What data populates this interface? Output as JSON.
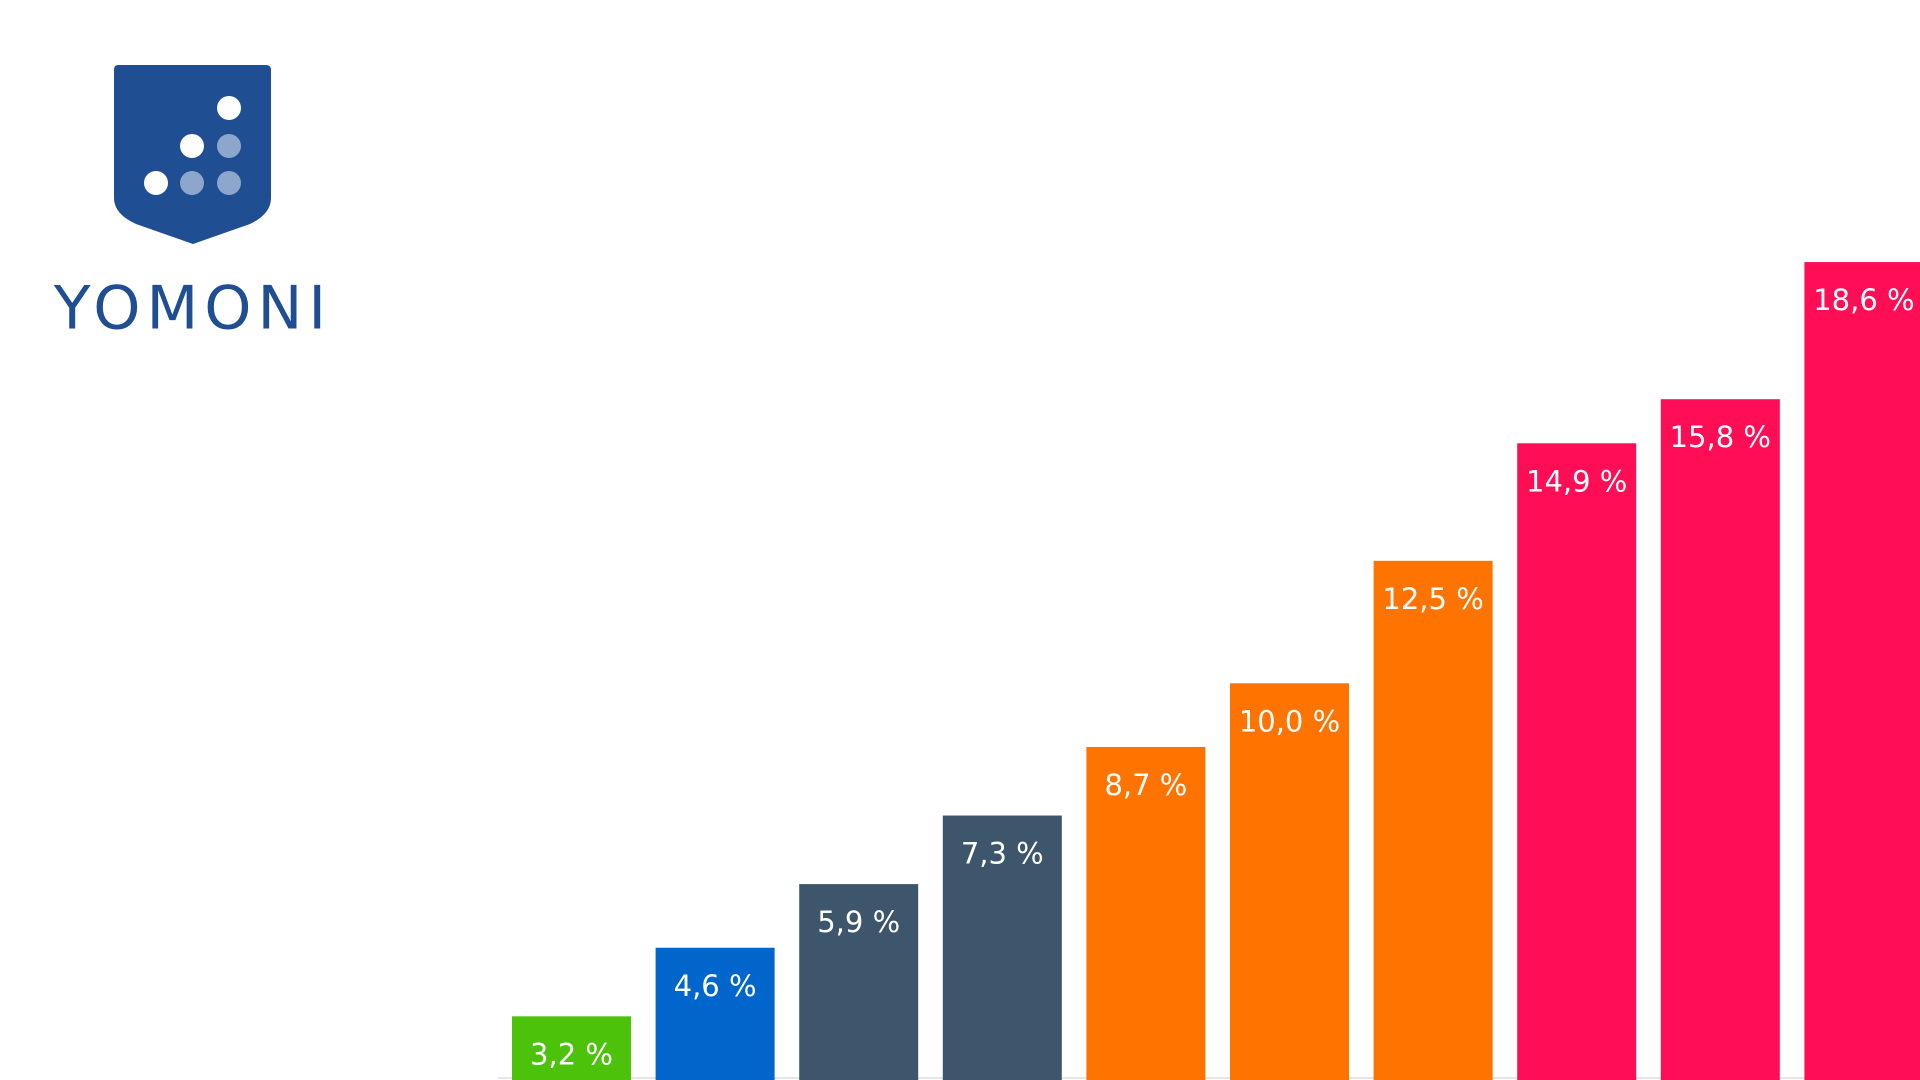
{
  "logo": {
    "text": "YOMONI"
  },
  "chart_data": {
    "type": "bar",
    "categories": [
      null,
      null,
      null,
      null,
      null,
      null,
      null,
      null,
      null,
      null
    ],
    "values": [
      3.2,
      4.6,
      5.9,
      7.3,
      8.7,
      10.0,
      12.5,
      14.9,
      15.8,
      18.6
    ],
    "value_labels": [
      "3,2 %",
      "4,6 %",
      "5,9 %",
      "7,3 %",
      "8,7 %",
      "10,0 %",
      "12,5 %",
      "14,9 %",
      "15,8 %",
      "18,6 %"
    ],
    "colors": [
      "#4cc30a",
      "#0066cc",
      "#3d566b",
      "#3d566b",
      "#ff7300",
      "#ff7300",
      "#ff7300",
      "#ff0d55",
      "#ff0d55",
      "#ff0d55"
    ],
    "ylim": [
      1.9,
      20
    ]
  }
}
